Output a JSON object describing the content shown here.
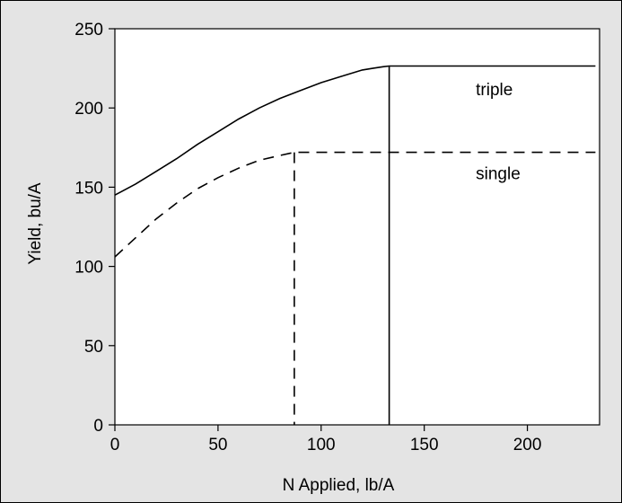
{
  "chart_data": {
    "type": "line",
    "title": "",
    "xlabel": "N Applied, lb/A",
    "ylabel": "Yield, bu/A",
    "xlim": [
      0,
      235
    ],
    "ylim": [
      0,
      250
    ],
    "xticks": [
      0,
      50,
      100,
      150,
      200
    ],
    "yticks": [
      0,
      50,
      100,
      150,
      200,
      250
    ],
    "grid": false,
    "legend": "none",
    "series": [
      {
        "name": "triple",
        "style": "solid",
        "color": "#000000",
        "x": [
          0,
          10,
          20,
          30,
          40,
          50,
          60,
          70,
          80,
          90,
          100,
          110,
          120,
          125,
          130,
          133,
          233
        ],
        "y": [
          145,
          152,
          160,
          168,
          177,
          185,
          193,
          200,
          206,
          211,
          216,
          220,
          224,
          225,
          226,
          226.5,
          226.5
        ]
      },
      {
        "name": "single",
        "style": "dashed",
        "color": "#000000",
        "x": [
          0,
          10,
          20,
          30,
          40,
          50,
          60,
          70,
          80,
          87,
          233
        ],
        "y": [
          106,
          118,
          130,
          140,
          149,
          156,
          162,
          167,
          170,
          172,
          172
        ]
      }
    ],
    "drop_lines": [
      {
        "series": "triple",
        "x": 133,
        "y": 226.5,
        "style": "solid"
      },
      {
        "series": "single",
        "x": 87,
        "y": 172,
        "style": "dashed"
      }
    ],
    "annotations": [
      {
        "text": "triple",
        "x": 175,
        "y": 208
      },
      {
        "text": "single",
        "x": 175,
        "y": 155
      }
    ]
  }
}
